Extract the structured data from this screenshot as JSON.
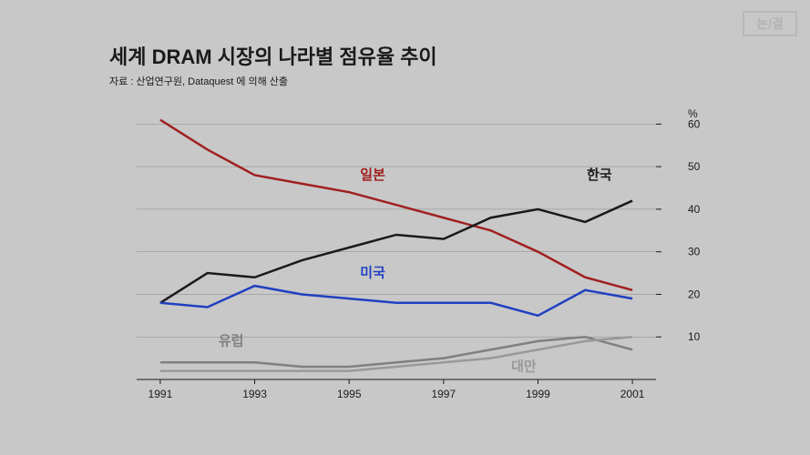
{
  "title": "세계 DRAM 시장의 나라별 점유율 추이",
  "subtitle": "자료 : 산업연구원,  Dataquest 에 의해 산출",
  "y_unit": "%",
  "background_color": "#c8c8c8",
  "chart": {
    "type": "line",
    "xlim": [
      1990.5,
      2001.5
    ],
    "ylim": [
      0,
      62
    ],
    "x_ticks": [
      1991,
      1993,
      1995,
      1997,
      1999,
      2001
    ],
    "y_ticks": [
      10,
      20,
      30,
      40,
      50,
      60
    ],
    "axis_color": "#1a1a1a",
    "grid_color": "#888888",
    "x_values": [
      1991,
      1992,
      1993,
      1994,
      1995,
      1996,
      1997,
      1998,
      1999,
      2000,
      2001
    ],
    "series": [
      {
        "name": "japan",
        "label": "일본",
        "color": "#a02020",
        "values": [
          61,
          54,
          48,
          46,
          44,
          41,
          38,
          35,
          30,
          24,
          21
        ],
        "label_x": 1995.5,
        "label_y": 47
      },
      {
        "name": "korea",
        "label": "한국",
        "color": "#1a1a1a",
        "values": [
          18,
          25,
          24,
          28,
          31,
          34,
          33,
          38,
          40,
          37,
          42
        ],
        "label_x": 2000.3,
        "label_y": 47
      },
      {
        "name": "usa",
        "label": "미국",
        "color": "#2040c0",
        "values": [
          18,
          17,
          22,
          20,
          19,
          18,
          18,
          18,
          15,
          21,
          19
        ],
        "label_x": 1995.5,
        "label_y": 24
      },
      {
        "name": "europe",
        "label": "유럽",
        "color": "#808080",
        "values": [
          4,
          4,
          4,
          3,
          3,
          4,
          5,
          7,
          9,
          10,
          7
        ],
        "label_x": 1992.5,
        "label_y": 8
      },
      {
        "name": "taiwan",
        "label": "대만",
        "color": "#999999",
        "values": [
          2,
          2,
          2,
          2,
          2,
          3,
          4,
          5,
          7,
          9,
          10
        ],
        "label_x": 1998.7,
        "label_y": 2
      }
    ]
  },
  "logo_text": "논/결"
}
